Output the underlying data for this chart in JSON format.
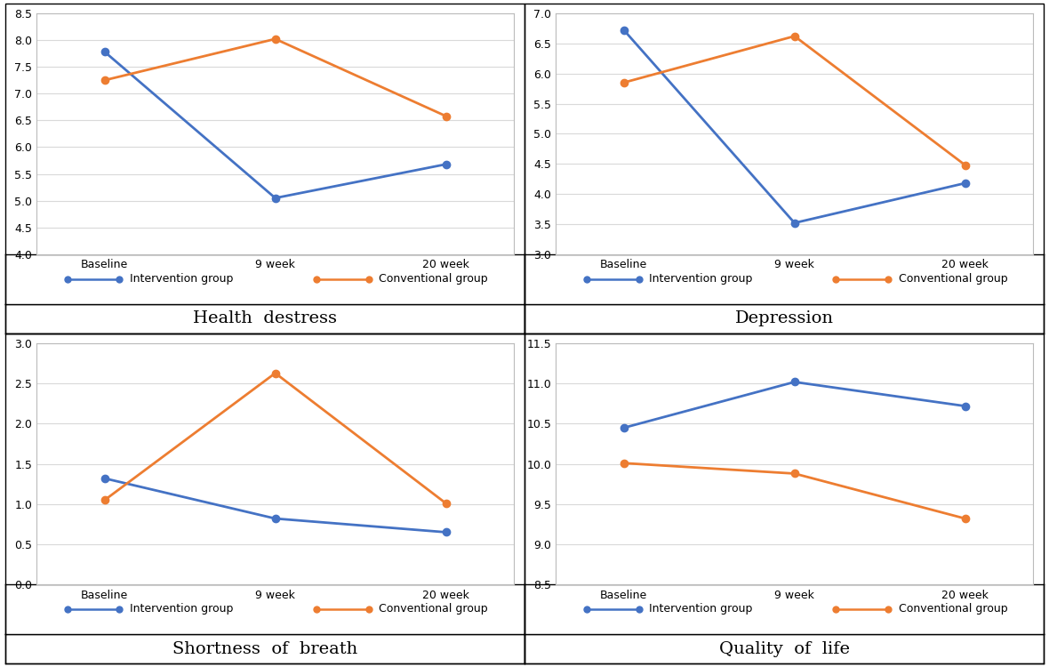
{
  "x_labels": [
    "Baseline",
    "9 week",
    "20 week"
  ],
  "plots": [
    {
      "title": "Health  destress",
      "intervention": [
        7.78,
        5.05,
        5.68
      ],
      "conventional": [
        7.25,
        8.02,
        6.58
      ],
      "ylim": [
        4.0,
        8.5
      ],
      "yticks": [
        4.0,
        4.5,
        5.0,
        5.5,
        6.0,
        6.5,
        7.0,
        7.5,
        8.0,
        8.5
      ]
    },
    {
      "title": "Depression",
      "intervention": [
        6.72,
        3.52,
        4.18
      ],
      "conventional": [
        5.85,
        6.62,
        4.48
      ],
      "ylim": [
        3.0,
        7.0
      ],
      "yticks": [
        3.0,
        3.5,
        4.0,
        4.5,
        5.0,
        5.5,
        6.0,
        6.5,
        7.0
      ]
    },
    {
      "title": "Shortness  of  breath",
      "intervention": [
        1.32,
        0.82,
        0.65
      ],
      "conventional": [
        1.05,
        2.63,
        1.01
      ],
      "ylim": [
        0.0,
        3.0
      ],
      "yticks": [
        0.0,
        0.5,
        1.0,
        1.5,
        2.0,
        2.5,
        3.0
      ]
    },
    {
      "title": "Quality  of  life",
      "intervention": [
        10.45,
        11.02,
        10.72
      ],
      "conventional": [
        10.01,
        9.88,
        9.32
      ],
      "ylim": [
        8.5,
        11.5
      ],
      "yticks": [
        8.5,
        9.0,
        9.5,
        10.0,
        10.5,
        11.0,
        11.5
      ]
    }
  ],
  "intervention_color": "#4472C4",
  "conventional_color": "#ED7D31",
  "legend_intervention": "Intervention group",
  "legend_conventional": "Conventional group",
  "marker": "o",
  "linewidth": 2.0,
  "markersize": 6,
  "grid_color": "#D9D9D9",
  "tick_fontsize": 9,
  "legend_fontsize": 9,
  "caption_fontsize": 14
}
